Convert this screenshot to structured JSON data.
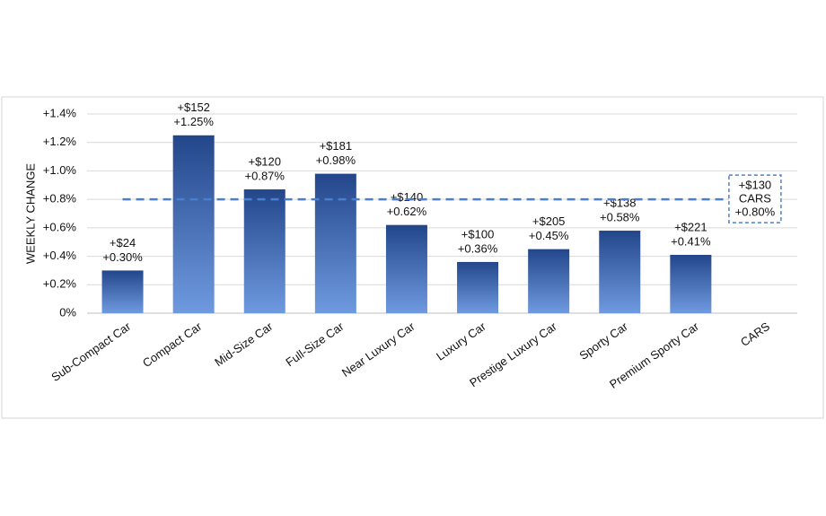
{
  "chart_data": {
    "type": "bar",
    "y_axis_label": "WEEKLY CHANGE",
    "categories": [
      "Sub-Compact Car",
      "Compact Car",
      "Mid-Size Car",
      "Full-Size Car",
      "Near Luxury Car",
      "Luxury Car",
      "Prestige Luxury Car",
      "Sporty Car",
      "Premium Sporty Car",
      "CARS"
    ],
    "values": [
      0.3,
      1.25,
      0.87,
      0.98,
      0.62,
      0.36,
      0.45,
      0.58,
      0.41,
      null
    ],
    "value_labels": [
      "+0.30%",
      "+1.25%",
      "+0.87%",
      "+0.98%",
      "+0.62%",
      "+0.36%",
      "+0.45%",
      "+0.58%",
      "+0.41%",
      null
    ],
    "price_change_labels": [
      "+$24",
      "+$152",
      "+$120",
      "+$181",
      "+$140",
      "+$100",
      "+$205",
      "+$138",
      "+$221",
      null
    ],
    "color": "#23468a",
    "reference": {
      "value": 0.8,
      "label": "CARS",
      "value_label": "+0.80%",
      "price_change_label": "+$130",
      "color": "#4a7fd0"
    },
    "ylim": [
      0,
      1.4
    ],
    "yticks": [
      {
        "value": 0,
        "label": "0%"
      },
      {
        "value": 0.2,
        "label": "+0.2%"
      },
      {
        "value": 0.4,
        "label": "+0.4%"
      },
      {
        "value": 0.6,
        "label": "+0.6%"
      },
      {
        "value": 0.8,
        "label": "+0.8%"
      },
      {
        "value": 1.0,
        "label": "+1.0%"
      },
      {
        "value": 1.2,
        "label": "+1.2%"
      },
      {
        "value": 1.4,
        "label": "+1.4%"
      }
    ],
    "grid": true
  }
}
